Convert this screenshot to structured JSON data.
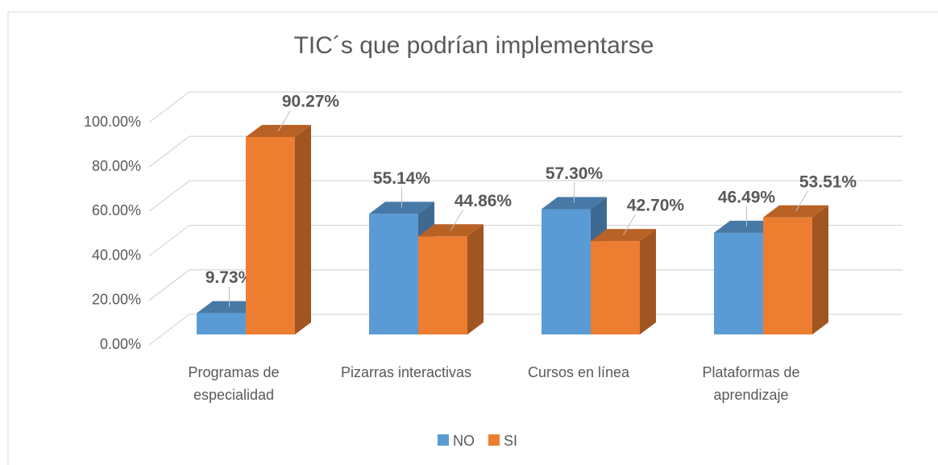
{
  "chart_data": {
    "type": "bar3d",
    "title": "TIC´s que podrían implementarse",
    "categories": [
      "Programas de especialidad",
      "Pizarras interactivas",
      "Cursos en línea",
      "Plataformas de aprendizaje"
    ],
    "series": [
      {
        "name": "NO",
        "color": "#5b9bd5",
        "values": [
          9.73,
          55.14,
          57.3,
          46.49
        ],
        "value_labels": [
          "9.73%",
          "55.14%",
          "57.30%",
          "46.49%"
        ]
      },
      {
        "name": "SI",
        "color": "#ed7d31",
        "values": [
          90.27,
          44.86,
          42.7,
          53.51
        ],
        "value_labels": [
          "90.27%",
          "44.86%",
          "42.70%",
          "53.51%"
        ]
      }
    ],
    "ylim": [
      0,
      100
    ],
    "yticks": [
      {
        "value": 0,
        "label": "0.00%"
      },
      {
        "value": 20,
        "label": "20.00%"
      },
      {
        "value": 40,
        "label": "40.00%"
      },
      {
        "value": 60,
        "label": "60.00%"
      },
      {
        "value": 80,
        "label": "80.00%"
      },
      {
        "value": 100,
        "label": "100.00%"
      }
    ],
    "grid": true,
    "legend": "bottom"
  }
}
